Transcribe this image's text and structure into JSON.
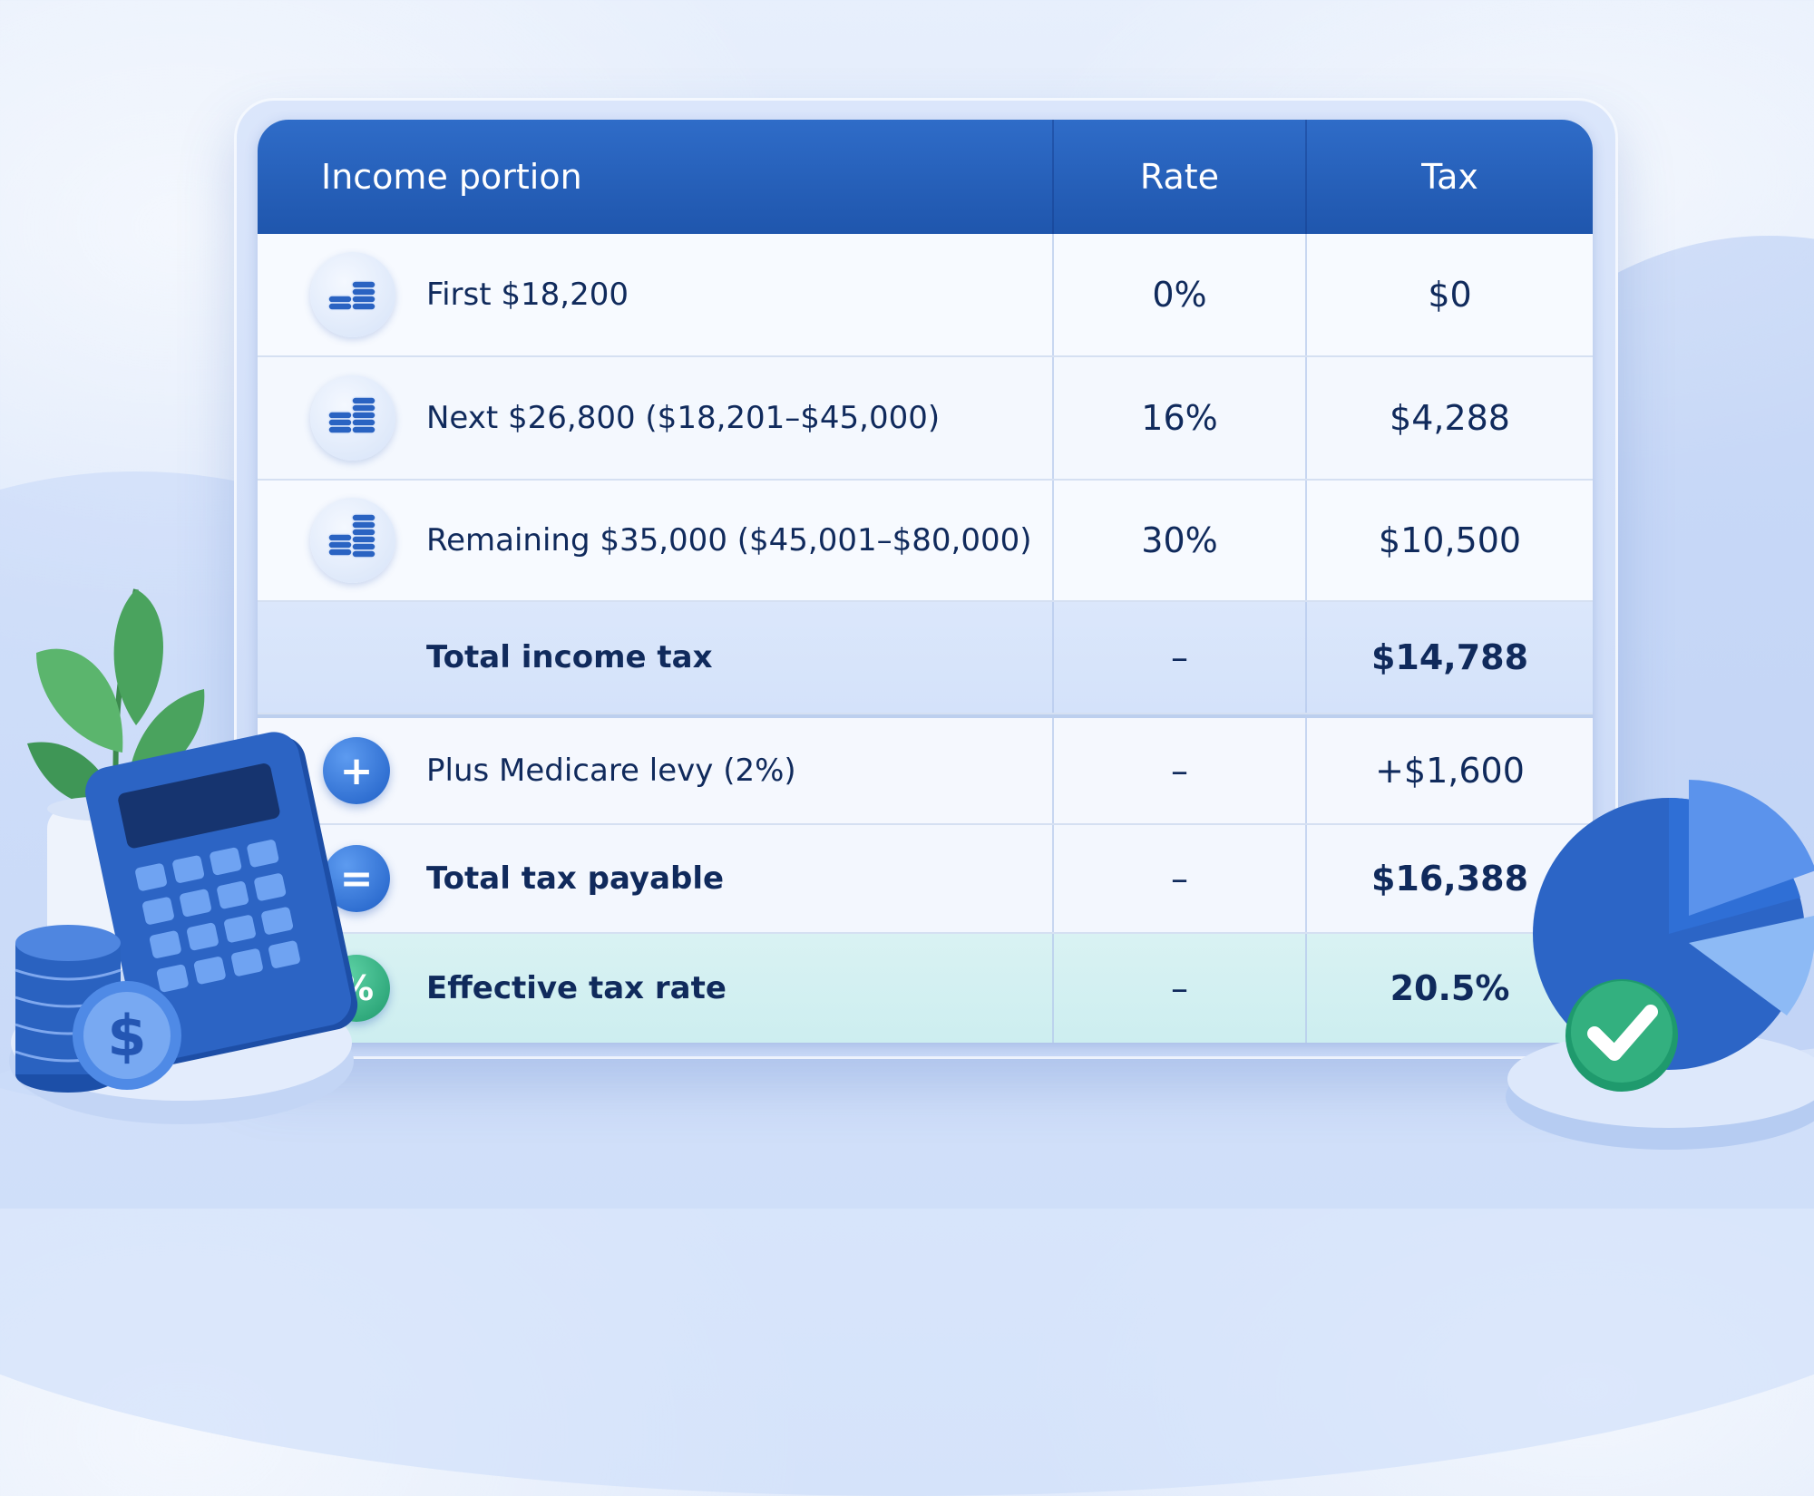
{
  "table": {
    "headers": {
      "portion": "Income portion",
      "rate": "Rate",
      "tax": "Tax"
    },
    "rows": [
      {
        "label": "First $18,200",
        "rate": "0%",
        "tax": "$0",
        "icon": "coin-stack-icon"
      },
      {
        "label": "Next $26,800 ($18,201–$45,000)",
        "rate": "16%",
        "tax": "$4,288",
        "icon": "coin-stack-icon"
      },
      {
        "label": "Remaining $35,000 ($45,001–$80,000)",
        "rate": "30%",
        "tax": "$10,500",
        "icon": "coin-stack-icon"
      },
      {
        "label": "Total income tax",
        "rate": "–",
        "tax": "$14,788"
      },
      {
        "label": "Plus Medicare levy (2%)",
        "rate": "–",
        "tax": "+$1,600",
        "icon": "plus-icon",
        "symbol": "+"
      },
      {
        "label": "Total tax payable",
        "rate": "–",
        "tax": "$16,388",
        "icon": "equals-icon",
        "symbol": "="
      },
      {
        "label": "Effective tax rate",
        "rate": "–",
        "tax": "20.5%",
        "icon": "percent-icon",
        "symbol": "%"
      }
    ]
  },
  "decorations": {
    "calculator_dollar": "$",
    "colors": {
      "header": "#1f56ad",
      "accent_green": "#1f9a6d",
      "accent_blue": "#2f6cc8"
    }
  }
}
